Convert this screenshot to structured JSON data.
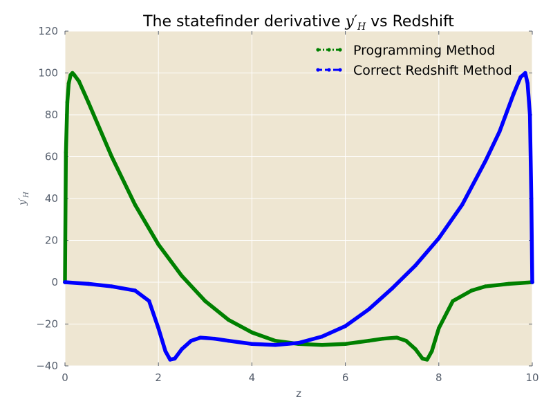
{
  "chart_data": {
    "type": "line",
    "title": "The statefinder derivative y′H vs Redshift",
    "title_parts": {
      "pre": "The statefinder derivative ",
      "sym": "y′",
      "sub": "H",
      "post": " vs Redshift"
    },
    "xlabel": "z",
    "ylabel": "y′H",
    "ylabel_parts": {
      "sym": "y′",
      "sub": "H"
    },
    "xlim": [
      0,
      10
    ],
    "ylim": [
      -40,
      120
    ],
    "xticks": [
      "0",
      "2",
      "4",
      "6",
      "8",
      "10"
    ],
    "yticks": [
      "−40",
      "−20",
      "0",
      "20",
      "40",
      "60",
      "80",
      "100",
      "120"
    ],
    "grid": true,
    "legend_position": "top-right",
    "colors": {
      "background": "#eee6d2",
      "grid": "#ffffff",
      "programming": "#008000",
      "correct": "#0000ff"
    },
    "series": [
      {
        "name": "Programming Method",
        "style": "dotted-dashdot",
        "x": [
          0,
          0.02,
          0.05,
          0.08,
          0.12,
          0.16,
          0.2,
          0.3,
          0.5,
          1.0,
          1.5,
          2.0,
          2.5,
          3.0,
          3.5,
          4.0,
          4.5,
          5.0,
          5.5,
          6.0,
          6.5,
          6.8,
          7.1,
          7.3,
          7.5,
          7.65,
          7.75,
          7.85,
          8.0,
          8.3,
          8.7,
          9.0,
          9.5,
          10.0
        ],
        "y": [
          0,
          62,
          86,
          95,
          99,
          100,
          99,
          96,
          86,
          60,
          37,
          18,
          3,
          -9,
          -18,
          -24,
          -28,
          -29.5,
          -30,
          -29.5,
          -28,
          -27,
          -26.5,
          -28,
          -32,
          -36.5,
          -37,
          -33,
          -22,
          -9,
          -4,
          -2,
          -0.8,
          0
        ]
      },
      {
        "name": "Correct Redshift Method",
        "style": "dashed",
        "x": [
          0,
          0.5,
          1.0,
          1.5,
          1.8,
          2.0,
          2.15,
          2.25,
          2.35,
          2.5,
          2.7,
          2.9,
          3.2,
          3.5,
          4.0,
          4.5,
          5.0,
          5.5,
          6.0,
          6.5,
          7.0,
          7.5,
          8.0,
          8.5,
          9.0,
          9.3,
          9.6,
          9.75,
          9.85,
          9.9,
          9.95,
          9.98,
          10.0
        ],
        "y": [
          0,
          -0.8,
          -2,
          -4,
          -9,
          -22,
          -33,
          -37,
          -36.5,
          -32,
          -28,
          -26.5,
          -27,
          -28,
          -29.5,
          -30,
          -29,
          -26,
          -21,
          -13,
          -3,
          8,
          21,
          37,
          58,
          72,
          90,
          98,
          100,
          95,
          80,
          40,
          0
        ]
      }
    ]
  }
}
